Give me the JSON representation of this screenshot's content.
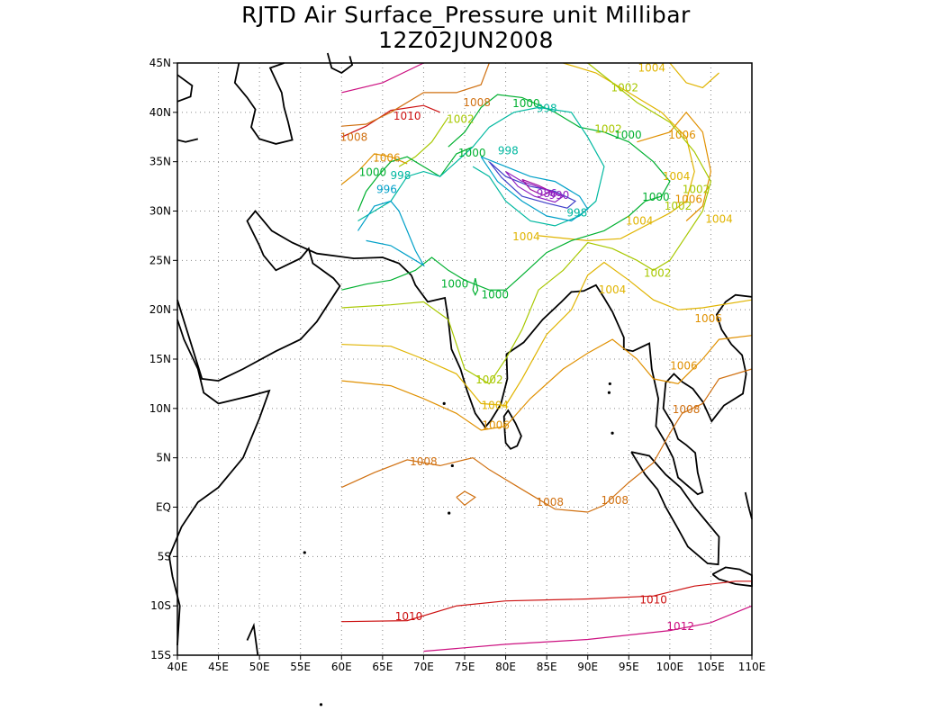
{
  "title_line_1": "RJTD Air Surface_Pressure unit Millibar",
  "title_line_2": "12Z02JUN2008",
  "map": {
    "lon_range": [
      40,
      110
    ],
    "lat_range": [
      -15,
      45
    ],
    "lon_ticks": [
      "40E",
      "45E",
      "50E",
      "55E",
      "60E",
      "65E",
      "70E",
      "75E",
      "80E",
      "85E",
      "90E",
      "95E",
      "100E",
      "105E",
      "110E"
    ],
    "lat_ticks": [
      "15S",
      "10S",
      "5S",
      "EQ",
      "5N",
      "10N",
      "15N",
      "20N",
      "25N",
      "30N",
      "35N",
      "40N",
      "45N"
    ],
    "grid": "dotted"
  },
  "contour_labels": [
    {
      "text": "1004",
      "lon": 97.8,
      "lat": 44.5,
      "color": "#e0b400"
    },
    {
      "text": "1002",
      "lon": 94.5,
      "lat": 42.5,
      "color": "#a8c800"
    },
    {
      "text": "1008",
      "lon": 76.5,
      "lat": 41.0,
      "color": "#d07010"
    },
    {
      "text": "1000",
      "lon": 82.5,
      "lat": 40.9,
      "color": "#00b030"
    },
    {
      "text": "998",
      "lon": 85.0,
      "lat": 40.4,
      "color": "#00b8a0"
    },
    {
      "text": "1010",
      "lon": 68.0,
      "lat": 39.6,
      "color": "#cc1010"
    },
    {
      "text": "1002",
      "lon": 74.5,
      "lat": 39.3,
      "color": "#a8c800"
    },
    {
      "text": "1002",
      "lon": 92.5,
      "lat": 38.3,
      "color": "#a8c800"
    },
    {
      "text": "1000",
      "lon": 94.9,
      "lat": 37.7,
      "color": "#00b030"
    },
    {
      "text": "1006",
      "lon": 101.5,
      "lat": 37.7,
      "color": "#e09000"
    },
    {
      "text": "1008",
      "lon": 61.5,
      "lat": 37.5,
      "color": "#d07010"
    },
    {
      "text": "1000",
      "lon": 75.9,
      "lat": 35.9,
      "color": "#00b030"
    },
    {
      "text": "998",
      "lon": 80.3,
      "lat": 36.1,
      "color": "#00b8a0"
    },
    {
      "text": "1006",
      "lon": 65.5,
      "lat": 35.4,
      "color": "#e09000"
    },
    {
      "text": "1000",
      "lon": 63.8,
      "lat": 33.9,
      "color": "#00b030"
    },
    {
      "text": "998",
      "lon": 67.2,
      "lat": 33.6,
      "color": "#00b8a0"
    },
    {
      "text": "1004",
      "lon": 100.8,
      "lat": 33.5,
      "color": "#e0b400"
    },
    {
      "text": "996",
      "lon": 65.5,
      "lat": 32.2,
      "color": "#00a0c8"
    },
    {
      "text": "986",
      "lon": 85.0,
      "lat": 31.8,
      "color": "#9020c0"
    },
    {
      "text": "990",
      "lon": 86.5,
      "lat": 31.6,
      "color": "#9020c0"
    },
    {
      "text": "1002",
      "lon": 103.2,
      "lat": 32.2,
      "color": "#a8c800"
    },
    {
      "text": "1000",
      "lon": 98.3,
      "lat": 31.4,
      "color": "#00b030"
    },
    {
      "text": "1006",
      "lon": 102.3,
      "lat": 31.2,
      "color": "#e09000"
    },
    {
      "text": "1002",
      "lon": 101.0,
      "lat": 30.5,
      "color": "#a8c800"
    },
    {
      "text": "998",
      "lon": 88.7,
      "lat": 29.8,
      "color": "#00b8a0"
    },
    {
      "text": "1004",
      "lon": 96.3,
      "lat": 29.0,
      "color": "#e0b400"
    },
    {
      "text": "1004",
      "lon": 106.0,
      "lat": 29.2,
      "color": "#e0b400"
    },
    {
      "text": "1004",
      "lon": 82.5,
      "lat": 27.4,
      "color": "#e0b400"
    },
    {
      "text": "1002",
      "lon": 98.5,
      "lat": 23.7,
      "color": "#a8c800"
    },
    {
      "text": "1000",
      "lon": 73.8,
      "lat": 22.6,
      "color": "#00b030"
    },
    {
      "text": "1000",
      "lon": 78.7,
      "lat": 21.5,
      "color": "#00b030"
    },
    {
      "text": "1004",
      "lon": 93.0,
      "lat": 22.0,
      "color": "#e0b400"
    },
    {
      "text": "1006",
      "lon": 104.7,
      "lat": 19.1,
      "color": "#e09000"
    },
    {
      "text": "1006",
      "lon": 101.7,
      "lat": 14.3,
      "color": "#e09000"
    },
    {
      "text": "1002",
      "lon": 78.0,
      "lat": 12.9,
      "color": "#a8c800"
    },
    {
      "text": "1004",
      "lon": 78.7,
      "lat": 10.3,
      "color": "#e0b400"
    },
    {
      "text": "1006",
      "lon": 78.8,
      "lat": 8.3,
      "color": "#e09000"
    },
    {
      "text": "1008",
      "lon": 102.0,
      "lat": 9.9,
      "color": "#d07010"
    },
    {
      "text": "1008",
      "lon": 70.0,
      "lat": 4.6,
      "color": "#d07010"
    },
    {
      "text": "1008",
      "lon": 85.4,
      "lat": 0.5,
      "color": "#d07010"
    },
    {
      "text": "1008",
      "lon": 93.3,
      "lat": 0.7,
      "color": "#d07010"
    },
    {
      "text": "1010",
      "lon": 98.0,
      "lat": -9.4,
      "color": "#cc1010"
    },
    {
      "text": "1010",
      "lon": 68.2,
      "lat": -11.1,
      "color": "#cc1010"
    },
    {
      "text": "1012",
      "lon": 101.3,
      "lat": -12.1,
      "color": "#cc1080"
    }
  ]
}
